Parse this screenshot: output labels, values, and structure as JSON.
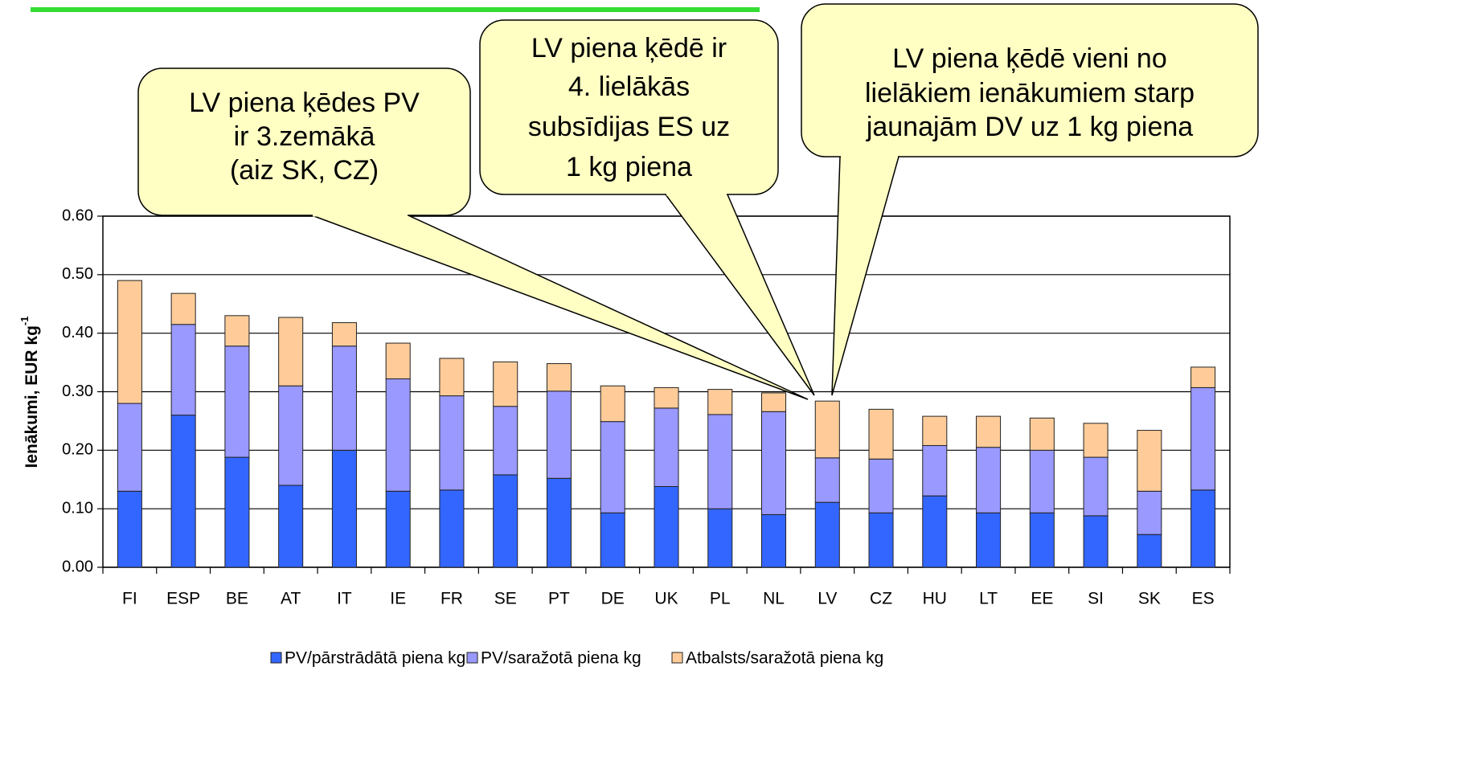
{
  "chart_data": {
    "type": "stacked_bar",
    "ylabel": "Ienākumi, EUR kg",
    "ylabel_sup": "-1",
    "categories": [
      "FI",
      "ESP",
      "BE",
      "AT",
      "IT",
      "IE",
      "FR",
      "SE",
      "PT",
      "DE",
      "UK",
      "PL",
      "NL",
      "LV",
      "CZ",
      "HU",
      "LT",
      "EE",
      "SI",
      "SK",
      "ES"
    ],
    "series": [
      {
        "name": "PV/pārstrādātā piena kg",
        "color": "#3366ff",
        "values": [
          0.13,
          0.26,
          0.188,
          0.14,
          0.2,
          0.13,
          0.132,
          0.158,
          0.152,
          0.093,
          0.138,
          0.1,
          0.09,
          0.111,
          0.093,
          0.122,
          0.093,
          0.093,
          0.088,
          0.056,
          0.132
        ]
      },
      {
        "name": "PV/saražotā piena kg",
        "color": "#9999ff",
        "values": [
          0.15,
          0.155,
          0.19,
          0.17,
          0.178,
          0.192,
          0.161,
          0.117,
          0.149,
          0.156,
          0.134,
          0.161,
          0.176,
          0.076,
          0.092,
          0.086,
          0.112,
          0.107,
          0.1,
          0.074,
          0.175
        ]
      },
      {
        "name": "Atbalsts/saražotā piena kg",
        "color": "#ffcc99",
        "values": [
          0.21,
          0.053,
          0.052,
          0.117,
          0.04,
          0.061,
          0.064,
          0.076,
          0.047,
          0.061,
          0.035,
          0.043,
          0.032,
          0.097,
          0.085,
          0.05,
          0.053,
          0.055,
          0.058,
          0.104,
          0.035
        ]
      }
    ],
    "ylim": [
      0,
      0.6
    ],
    "yticks": [
      {
        "value": 0,
        "label": "0.00"
      },
      {
        "value": 0.1,
        "label": "0.10"
      },
      {
        "value": 0.2,
        "label": "0.20"
      },
      {
        "value": 0.3,
        "label": "0.30"
      },
      {
        "value": 0.4,
        "label": "0.40"
      },
      {
        "value": 0.5,
        "label": "0.50"
      },
      {
        "value": 0.6,
        "label": "0.60"
      }
    ],
    "grid": true,
    "legend": "bottom",
    "annotations": [
      {
        "lines": [
          "LV piena ķēdes PV",
          "ir 3.zemākā",
          "(aiz SK, CZ)"
        ]
      },
      {
        "lines": [
          "LV piena ķēdē ir",
          "4. lielākās",
          "subsīdijas ES uz",
          "1 kg piena"
        ]
      },
      {
        "lines": [
          "LV piena ķēdē vieni no",
          "lielākiem ienākumiem starp",
          "jaunajām DV uz 1 kg piena"
        ]
      }
    ]
  }
}
